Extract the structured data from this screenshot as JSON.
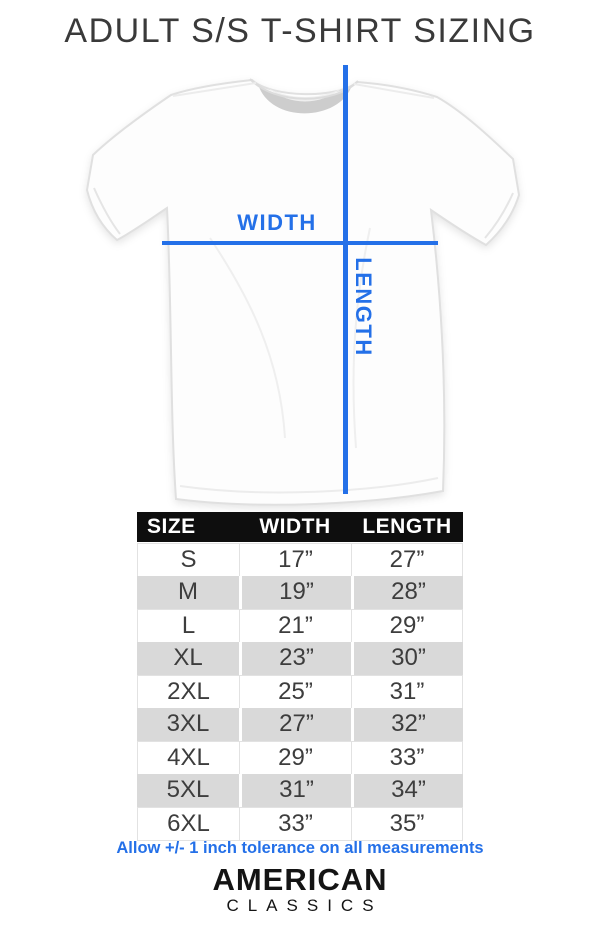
{
  "title": "ADULT S/S T-SHIRT SIZING",
  "diagram": {
    "width_label": "WIDTH",
    "length_label": "LENGTH"
  },
  "table": {
    "headers": [
      "SIZE",
      "WIDTH",
      "LENGTH"
    ],
    "rows": [
      {
        "size": "S",
        "width": "17”",
        "length": "27”"
      },
      {
        "size": "M",
        "width": "19”",
        "length": "28”"
      },
      {
        "size": "L",
        "width": "21”",
        "length": "29”"
      },
      {
        "size": "XL",
        "width": "23”",
        "length": "30”"
      },
      {
        "size": "2XL",
        "width": "25”",
        "length": "31”"
      },
      {
        "size": "3XL",
        "width": "27”",
        "length": "32”"
      },
      {
        "size": "4XL",
        "width": "29”",
        "length": "33”"
      },
      {
        "size": "5XL",
        "width": "31”",
        "length": "34”"
      },
      {
        "size": "6XL",
        "width": "33”",
        "length": "35”"
      }
    ]
  },
  "footer": {
    "tolerance_note": "Allow +/- 1 inch tolerance on all measurements",
    "brand_line1": "AMERICAN",
    "brand_line2": "CLASSICS"
  },
  "colors": {
    "accent": "#2470e8",
    "stripe": "#d9d9d9",
    "header_bg": "#0e0e0e",
    "header_text": "#ffffff",
    "title_text": "#3a3a3a"
  }
}
